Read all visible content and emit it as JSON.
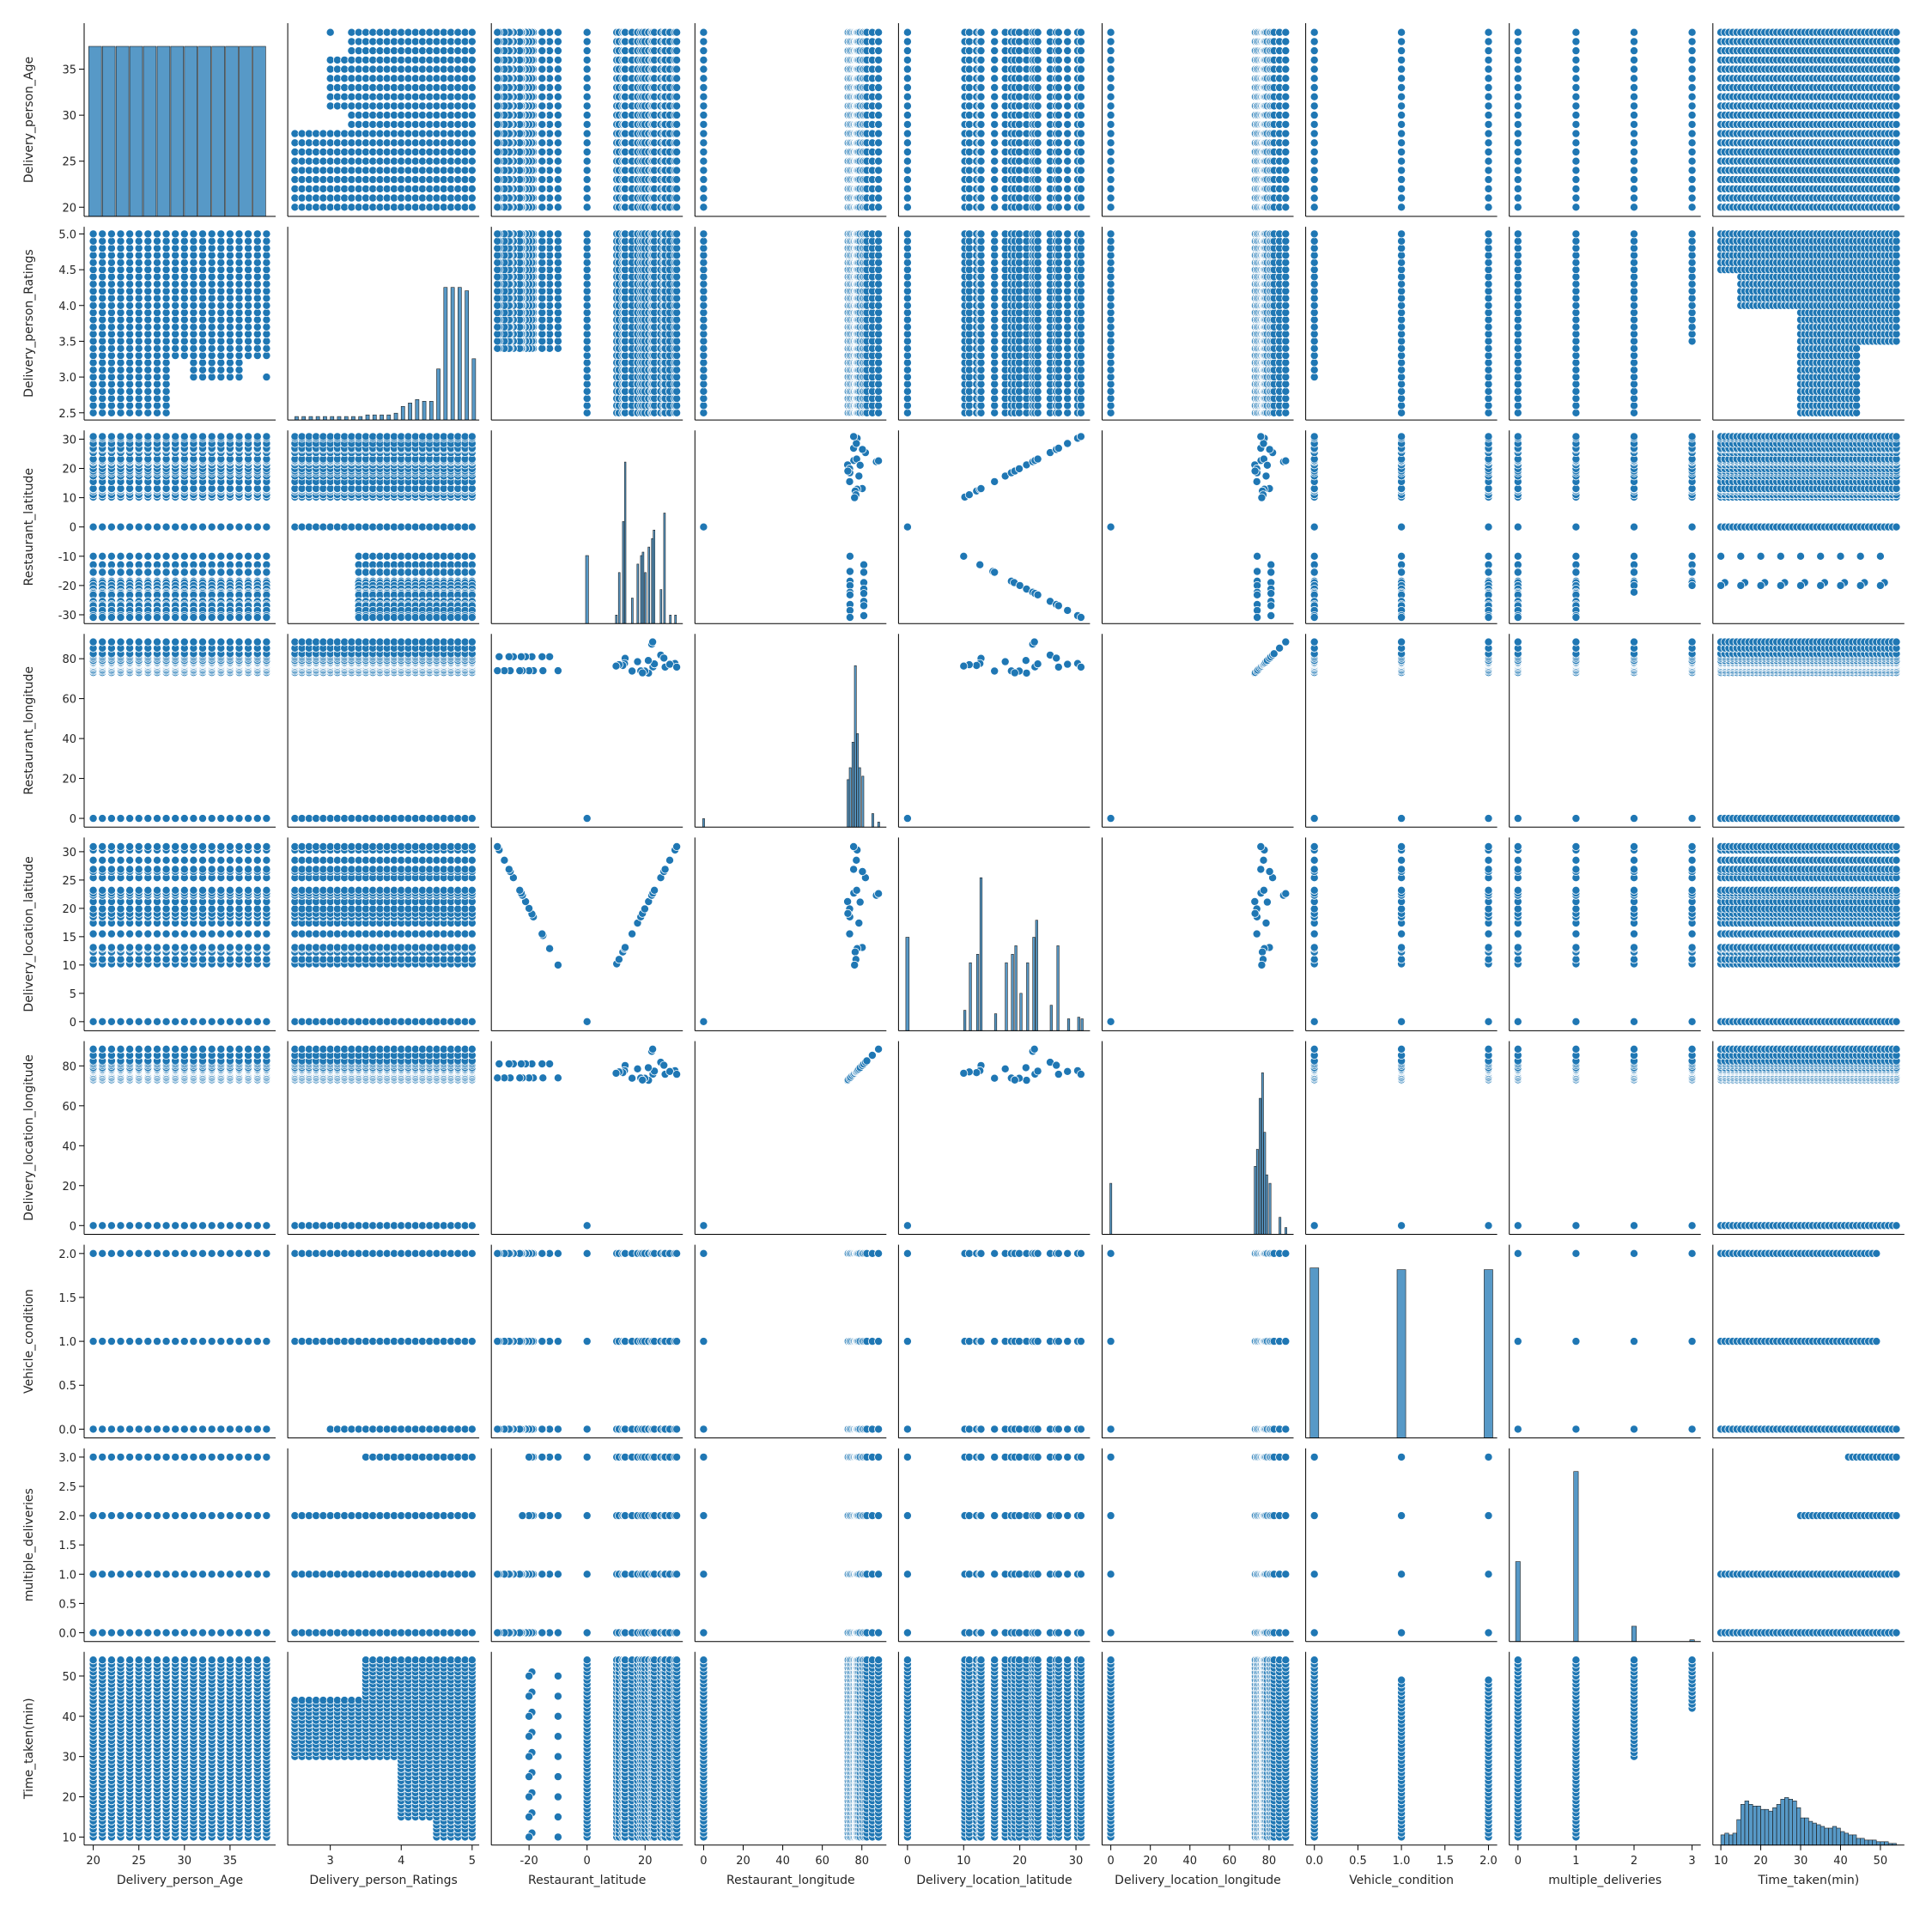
{
  "chart_data": {
    "type": "pairplot",
    "marker_color": "#1f77b4",
    "edge_color": "#ffffff",
    "variables": [
      "Delivery_person_Age",
      "Delivery_person_Ratings",
      "Restaurant_latitude",
      "Restaurant_longitude",
      "Delivery_location_latitude",
      "Delivery_location_longitude",
      "Vehicle_condition",
      "multiple_deliveries",
      "Time_taken(min)"
    ],
    "axes": [
      {
        "range": [
          19.0,
          40.0
        ],
        "ticks": [
          20,
          25,
          30,
          35
        ],
        "tick_labels": [
          "20",
          "25",
          "30",
          "35"
        ]
      },
      {
        "range": [
          2.4,
          5.1
        ],
        "ticks": [
          2.5,
          3.0,
          3.5,
          4.0,
          4.5,
          5.0
        ],
        "tick_labels": [
          "2.5",
          "3.0",
          "3.5",
          "4.0",
          "4.5",
          "5.0"
        ],
        "x_ticks": [
          3,
          4,
          5
        ],
        "x_tick_labels": [
          "3",
          "4",
          "5"
        ]
      },
      {
        "range": [
          -33.0,
          33.0
        ],
        "ticks": [
          -30,
          -20,
          -10,
          0,
          10,
          20,
          30
        ],
        "tick_labels": [
          "-30",
          "-20",
          "-10",
          "0",
          "10",
          "20",
          "30"
        ],
        "x_ticks": [
          -20,
          0,
          20
        ],
        "x_tick_labels": [
          "-20",
          "0",
          "20"
        ]
      },
      {
        "range": [
          -4.4,
          92.4
        ],
        "ticks": [
          0,
          20,
          40,
          60,
          80
        ],
        "tick_labels": [
          "0",
          "20",
          "40",
          "60",
          "80"
        ]
      },
      {
        "range": [
          -1.6,
          32.5
        ],
        "ticks": [
          0,
          5,
          10,
          15,
          20,
          25,
          30
        ],
        "tick_labels": [
          "0",
          "5",
          "10",
          "15",
          "20",
          "25",
          "30"
        ],
        "x_ticks": [
          0,
          10,
          20,
          30
        ],
        "x_tick_labels": [
          "0",
          "10",
          "20",
          "30"
        ]
      },
      {
        "range": [
          -4.4,
          92.4
        ],
        "ticks": [
          0,
          20,
          40,
          60,
          80
        ],
        "tick_labels": [
          "0",
          "20",
          "40",
          "60",
          "80"
        ]
      },
      {
        "range": [
          -0.1,
          2.1
        ],
        "ticks": [
          0.0,
          0.5,
          1.0,
          1.5,
          2.0
        ],
        "tick_labels": [
          "0.0",
          "0.5",
          "1.0",
          "1.5",
          "2.0"
        ]
      },
      {
        "range": [
          -0.15,
          3.15
        ],
        "ticks": [
          0.0,
          0.5,
          1.0,
          1.5,
          2.0,
          2.5,
          3.0
        ],
        "tick_labels": [
          "0.0",
          "0.5",
          "1.0",
          "1.5",
          "2.0",
          "2.5",
          "3.0"
        ],
        "x_ticks": [
          0,
          1,
          2,
          3
        ],
        "x_tick_labels": [
          "0",
          "1",
          "2",
          "3"
        ]
      },
      {
        "range": [
          8.0,
          56.0
        ],
        "ticks": [
          10,
          20,
          30,
          40,
          50
        ],
        "tick_labels": [
          "10",
          "20",
          "30",
          "40",
          "50"
        ]
      }
    ],
    "series": {
      "age": [
        20,
        21,
        22,
        23,
        24,
        25,
        26,
        27,
        28,
        29,
        30,
        31,
        32,
        33,
        34,
        35,
        36,
        37,
        38,
        39
      ],
      "ratings": [
        2.5,
        2.6,
        2.7,
        2.8,
        2.9,
        3.0,
        3.1,
        3.2,
        3.3,
        3.4,
        3.5,
        3.6,
        3.7,
        3.8,
        3.9,
        4.0,
        4.1,
        4.2,
        4.3,
        4.4,
        4.5,
        4.6,
        4.7,
        4.8,
        4.9,
        5.0
      ],
      "lat_pos": [
        10.2,
        11.0,
        12.3,
        12.9,
        13.1,
        15.5,
        17.4,
        18.5,
        19.1,
        19.9,
        21.2,
        22.3,
        22.7,
        23.2,
        25.4,
        26.5,
        26.9,
        28.5,
        30.3,
        30.9
      ],
      "lat_neg": [
        -10.0,
        -12.9,
        -15.2,
        -15.5,
        -18.5,
        -19.0,
        -20.0,
        -21.2,
        -22.3,
        -22.7,
        -23.2,
        -25.4,
        -26.5,
        -26.9,
        -28.5,
        -30.3,
        -30.9
      ],
      "lon": [
        72.8,
        73.1,
        73.8,
        74.3,
        75.1,
        75.8,
        76.3,
        76.9,
        77.2,
        77.6,
        78.0,
        78.5,
        79.1,
        80.2,
        80.9,
        81.8,
        82.5,
        85.3,
        88.4
      ],
      "vehicle": [
        0,
        1,
        2
      ],
      "multi": [
        0,
        1,
        2,
        3
      ],
      "time": [
        10,
        11,
        12,
        13,
        14,
        15,
        16,
        17,
        18,
        19,
        20,
        21,
        22,
        23,
        24,
        25,
        26,
        27,
        28,
        29,
        30,
        31,
        32,
        33,
        34,
        35,
        36,
        37,
        38,
        39,
        40,
        41,
        42,
        43,
        44,
        45,
        46,
        47,
        48,
        49,
        50,
        51,
        52,
        53,
        54
      ],
      "restaurant_geo": [
        {
          "lat": 30.3,
          "lon": 77.6
        },
        {
          "lat": 26.9,
          "lon": 75.8
        },
        {
          "lat": 22.7,
          "lon": 75.9
        },
        {
          "lat": 21.2,
          "lon": 72.8
        },
        {
          "lat": 19.9,
          "lon": 73.8
        },
        {
          "lat": 18.5,
          "lon": 73.9
        },
        {
          "lat": 17.4,
          "lon": 78.5
        },
        {
          "lat": 15.5,
          "lon": 73.8
        },
        {
          "lat": 13.1,
          "lon": 80.2
        },
        {
          "lat": 12.9,
          "lon": 77.6
        },
        {
          "lat": 12.3,
          "lon": 76.6
        },
        {
          "lat": 11.0,
          "lon": 77.0
        },
        {
          "lat": 10.0,
          "lon": 76.3
        },
        {
          "lat": 22.3,
          "lon": 87.3
        },
        {
          "lat": 25.4,
          "lon": 81.8
        },
        {
          "lat": 26.5,
          "lon": 80.3
        },
        {
          "lat": 23.2,
          "lon": 77.4
        },
        {
          "lat": 21.1,
          "lon": 79.1
        },
        {
          "lat": 19.1,
          "lon": 72.9
        },
        {
          "lat": 28.5,
          "lon": 77.2
        },
        {
          "lat": 30.9,
          "lon": 75.8
        },
        {
          "lat": 22.6,
          "lon": 88.4
        },
        {
          "lat": 0,
          "lon": 0
        }
      ],
      "vehicle_rating_max": [
        5.0,
        5.0,
        5.0
      ],
      "vehicle_rating_min": [
        3.0,
        2.5,
        2.5
      ],
      "multi_rating_min": [
        2.5,
        2.5,
        2.5,
        3.5
      ],
      "vehicle_time_max": [
        54,
        49,
        49
      ],
      "multi_time_min": [
        10,
        10,
        30,
        42
      ],
      "rating_min_for_multi3": 3.5
    },
    "histograms": [
      {
        "var": 0,
        "bins": [
          [
            19.5,
            20.9,
            1.0
          ],
          [
            21.0,
            22.4,
            1.0
          ],
          [
            22.5,
            23.9,
            1.0
          ],
          [
            24.0,
            25.4,
            1.0
          ],
          [
            25.5,
            26.9,
            1.0
          ],
          [
            27.0,
            28.4,
            1.0
          ],
          [
            28.5,
            29.9,
            1.0
          ],
          [
            30.0,
            31.4,
            1.0
          ],
          [
            31.5,
            32.9,
            1.0
          ],
          [
            33.0,
            34.4,
            1.0
          ],
          [
            34.5,
            35.9,
            1.0
          ],
          [
            36.0,
            37.4,
            1.0
          ],
          [
            37.5,
            38.9,
            1.0
          ]
        ]
      },
      {
        "var": 1,
        "bins": [
          [
            2.5,
            2.55,
            0.02
          ],
          [
            2.6,
            2.65,
            0.02
          ],
          [
            2.7,
            2.75,
            0.02
          ],
          [
            2.8,
            2.85,
            0.02
          ],
          [
            2.9,
            2.95,
            0.02
          ],
          [
            3.0,
            3.05,
            0.02
          ],
          [
            3.1,
            3.15,
            0.02
          ],
          [
            3.2,
            3.25,
            0.02
          ],
          [
            3.3,
            3.35,
            0.02
          ],
          [
            3.4,
            3.45,
            0.02
          ],
          [
            3.5,
            3.55,
            0.03
          ],
          [
            3.6,
            3.65,
            0.03
          ],
          [
            3.7,
            3.75,
            0.03
          ],
          [
            3.8,
            3.85,
            0.03
          ],
          [
            3.9,
            3.95,
            0.04
          ],
          [
            4.0,
            4.05,
            0.08
          ],
          [
            4.1,
            4.15,
            0.1
          ],
          [
            4.2,
            4.25,
            0.12
          ],
          [
            4.3,
            4.35,
            0.11
          ],
          [
            4.4,
            4.45,
            0.11
          ],
          [
            4.5,
            4.55,
            0.3
          ],
          [
            4.6,
            4.65,
            0.78
          ],
          [
            4.7,
            4.75,
            0.78
          ],
          [
            4.8,
            4.85,
            0.78
          ],
          [
            4.9,
            4.95,
            0.76
          ],
          [
            5.0,
            5.05,
            0.36
          ]
        ]
      },
      {
        "var": 2,
        "bins": [
          [
            -0.5,
            0.5,
            0.4
          ],
          [
            9.8,
            10.4,
            0.05
          ],
          [
            10.8,
            11.4,
            0.3
          ],
          [
            12.2,
            12.8,
            0.6
          ],
          [
            12.9,
            13.4,
            0.95
          ],
          [
            15.3,
            15.9,
            0.15
          ],
          [
            17.2,
            17.8,
            0.35
          ],
          [
            18.4,
            19.0,
            0.4
          ],
          [
            19.0,
            19.6,
            0.42
          ],
          [
            19.8,
            20.4,
            0.3
          ],
          [
            21.0,
            21.6,
            0.45
          ],
          [
            22.2,
            22.8,
            0.5
          ],
          [
            22.8,
            23.4,
            0.55
          ],
          [
            25.2,
            25.8,
            0.2
          ],
          [
            26.4,
            27.0,
            0.65
          ],
          [
            28.4,
            29.0,
            0.05
          ],
          [
            30.2,
            30.8,
            0.05
          ]
        ]
      },
      {
        "var": 3,
        "bins": [
          [
            -0.5,
            0.5,
            0.05
          ],
          [
            72.5,
            73.5,
            0.28
          ],
          [
            73.6,
            74.6,
            0.35
          ],
          [
            75.0,
            76.0,
            0.5
          ],
          [
            76.2,
            77.2,
            0.95
          ],
          [
            77.3,
            78.3,
            0.55
          ],
          [
            78.4,
            79.4,
            0.35
          ],
          [
            80.0,
            81.0,
            0.3
          ],
          [
            85.0,
            86.0,
            0.08
          ],
          [
            88.0,
            89.0,
            0.03
          ]
        ]
      },
      {
        "var": 4,
        "bins": [
          [
            -0.3,
            0.3,
            0.55
          ],
          [
            10.0,
            10.4,
            0.12
          ],
          [
            11.0,
            11.4,
            0.4
          ],
          [
            12.3,
            12.7,
            0.45
          ],
          [
            12.9,
            13.3,
            0.9
          ],
          [
            15.5,
            15.9,
            0.1
          ],
          [
            17.4,
            17.8,
            0.4
          ],
          [
            18.5,
            18.9,
            0.45
          ],
          [
            19.1,
            19.5,
            0.5
          ],
          [
            20.0,
            20.4,
            0.22
          ],
          [
            21.2,
            21.6,
            0.4
          ],
          [
            22.3,
            22.7,
            0.55
          ],
          [
            22.8,
            23.2,
            0.65
          ],
          [
            25.4,
            25.8,
            0.15
          ],
          [
            26.6,
            27.0,
            0.5
          ],
          [
            28.5,
            28.9,
            0.07
          ],
          [
            30.3,
            30.7,
            0.08
          ],
          [
            30.9,
            31.3,
            0.07
          ]
        ]
      },
      {
        "var": 5,
        "bins": [
          [
            -0.5,
            0.5,
            0.3
          ],
          [
            72.5,
            73.5,
            0.4
          ],
          [
            73.6,
            74.6,
            0.5
          ],
          [
            75.0,
            76.0,
            0.8
          ],
          [
            76.2,
            77.2,
            0.95
          ],
          [
            77.3,
            78.3,
            0.6
          ],
          [
            78.4,
            79.4,
            0.35
          ],
          [
            80.0,
            81.0,
            0.3
          ],
          [
            85.0,
            86.0,
            0.1
          ],
          [
            88.0,
            89.0,
            0.04
          ]
        ]
      },
      {
        "var": 6,
        "bins": [
          [
            -0.05,
            0.05,
            1.0
          ],
          [
            0.95,
            1.05,
            0.99
          ],
          [
            1.95,
            2.05,
            0.99
          ]
        ]
      },
      {
        "var": 7,
        "bins": [
          [
            -0.04,
            0.04,
            0.47
          ],
          [
            0.96,
            1.04,
            1.0
          ],
          [
            1.96,
            2.04,
            0.09
          ],
          [
            2.96,
            3.04,
            0.01
          ]
        ]
      },
      {
        "var": 8,
        "bins": [
          [
            10,
            11,
            0.06
          ],
          [
            11,
            12,
            0.07
          ],
          [
            12,
            13,
            0.06
          ],
          [
            13,
            14,
            0.07
          ],
          [
            14,
            15,
            0.15
          ],
          [
            15,
            16,
            0.24
          ],
          [
            16,
            17,
            0.26
          ],
          [
            17,
            18,
            0.24
          ],
          [
            18,
            19,
            0.23
          ],
          [
            19,
            20,
            0.23
          ],
          [
            20,
            21,
            0.21
          ],
          [
            21,
            22,
            0.21
          ],
          [
            22,
            23,
            0.2
          ],
          [
            23,
            24,
            0.22
          ],
          [
            24,
            25,
            0.24
          ],
          [
            25,
            26,
            0.27
          ],
          [
            26,
            27,
            0.28
          ],
          [
            27,
            28,
            0.27
          ],
          [
            28,
            29,
            0.26
          ],
          [
            29,
            30,
            0.22
          ],
          [
            30,
            31,
            0.16
          ],
          [
            31,
            32,
            0.16
          ],
          [
            32,
            33,
            0.14
          ],
          [
            33,
            34,
            0.13
          ],
          [
            34,
            35,
            0.12
          ],
          [
            35,
            36,
            0.11
          ],
          [
            36,
            37,
            0.1
          ],
          [
            37,
            38,
            0.1
          ],
          [
            38,
            39,
            0.11
          ],
          [
            39,
            40,
            0.1
          ],
          [
            40,
            41,
            0.08
          ],
          [
            41,
            42,
            0.07
          ],
          [
            42,
            43,
            0.06
          ],
          [
            43,
            44,
            0.06
          ],
          [
            44,
            45,
            0.04
          ],
          [
            45,
            46,
            0.04
          ],
          [
            46,
            47,
            0.03
          ],
          [
            47,
            48,
            0.03
          ],
          [
            48,
            49,
            0.03
          ],
          [
            49,
            50,
            0.02
          ],
          [
            50,
            51,
            0.02
          ],
          [
            51,
            52,
            0.02
          ],
          [
            52,
            53,
            0.01
          ],
          [
            53,
            54,
            0.01
          ]
        ]
      }
    ],
    "grid": false,
    "legend": "none"
  }
}
